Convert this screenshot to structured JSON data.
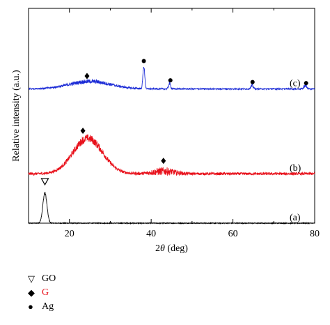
{
  "chart_data": {
    "type": "line",
    "xlabel_prefix": "2",
    "xlabel_theta": "θ",
    "xlabel_suffix": " (deg)",
    "ylabel": "Relative intensity (a.u.)",
    "xlim": [
      10,
      80
    ],
    "xticks": [
      20,
      40,
      60,
      80
    ],
    "grid": false,
    "series": [
      {
        "name": "(a)",
        "color": "#000000",
        "baseline": 0.0,
        "noise": 0.004,
        "peaks": [
          {
            "center": 14.0,
            "height": 0.14,
            "width": 0.5
          }
        ]
      },
      {
        "name": "(b)",
        "color": "#e8101a",
        "baseline": 0.23,
        "noise": 0.012,
        "peaks": [
          {
            "center": 24.5,
            "height": 0.165,
            "width": 3.6
          },
          {
            "center": 43.0,
            "height": 0.012,
            "width": 2.5
          }
        ]
      },
      {
        "name": "(c)",
        "color": "#1b2bd6",
        "baseline": 0.625,
        "noise": 0.006,
        "peaks": [
          {
            "center": 25.0,
            "height": 0.035,
            "width": 5.0
          },
          {
            "center": 38.2,
            "height": 0.105,
            "width": 0.22
          },
          {
            "center": 44.5,
            "height": 0.025,
            "width": 0.25
          },
          {
            "center": 64.7,
            "height": 0.015,
            "width": 0.3
          },
          {
            "center": 77.7,
            "height": 0.018,
            "width": 0.3
          }
        ]
      }
    ],
    "markers": [
      {
        "symbol": "triangle",
        "x": 14.0,
        "y": 0.195
      },
      {
        "symbol": "diamond",
        "x": 23.3,
        "y": 0.43
      },
      {
        "symbol": "diamond",
        "x": 43.0,
        "y": 0.29
      },
      {
        "symbol": "diamond",
        "x": 24.3,
        "y": 0.685
      },
      {
        "symbol": "circle",
        "x": 38.2,
        "y": 0.755
      },
      {
        "symbol": "circle",
        "x": 44.7,
        "y": 0.665
      },
      {
        "symbol": "circle",
        "x": 64.8,
        "y": 0.657
      },
      {
        "symbol": "circle",
        "x": 77.9,
        "y": 0.652
      }
    ],
    "legend_placement": "bottom-left"
  },
  "legend": {
    "items": [
      {
        "symbol": "▽",
        "label": "GO",
        "color": "#000000"
      },
      {
        "symbol": "◆",
        "label": "G",
        "color": "#e8101a"
      },
      {
        "symbol": "●",
        "label": "Ag",
        "color": "#000000"
      }
    ]
  }
}
